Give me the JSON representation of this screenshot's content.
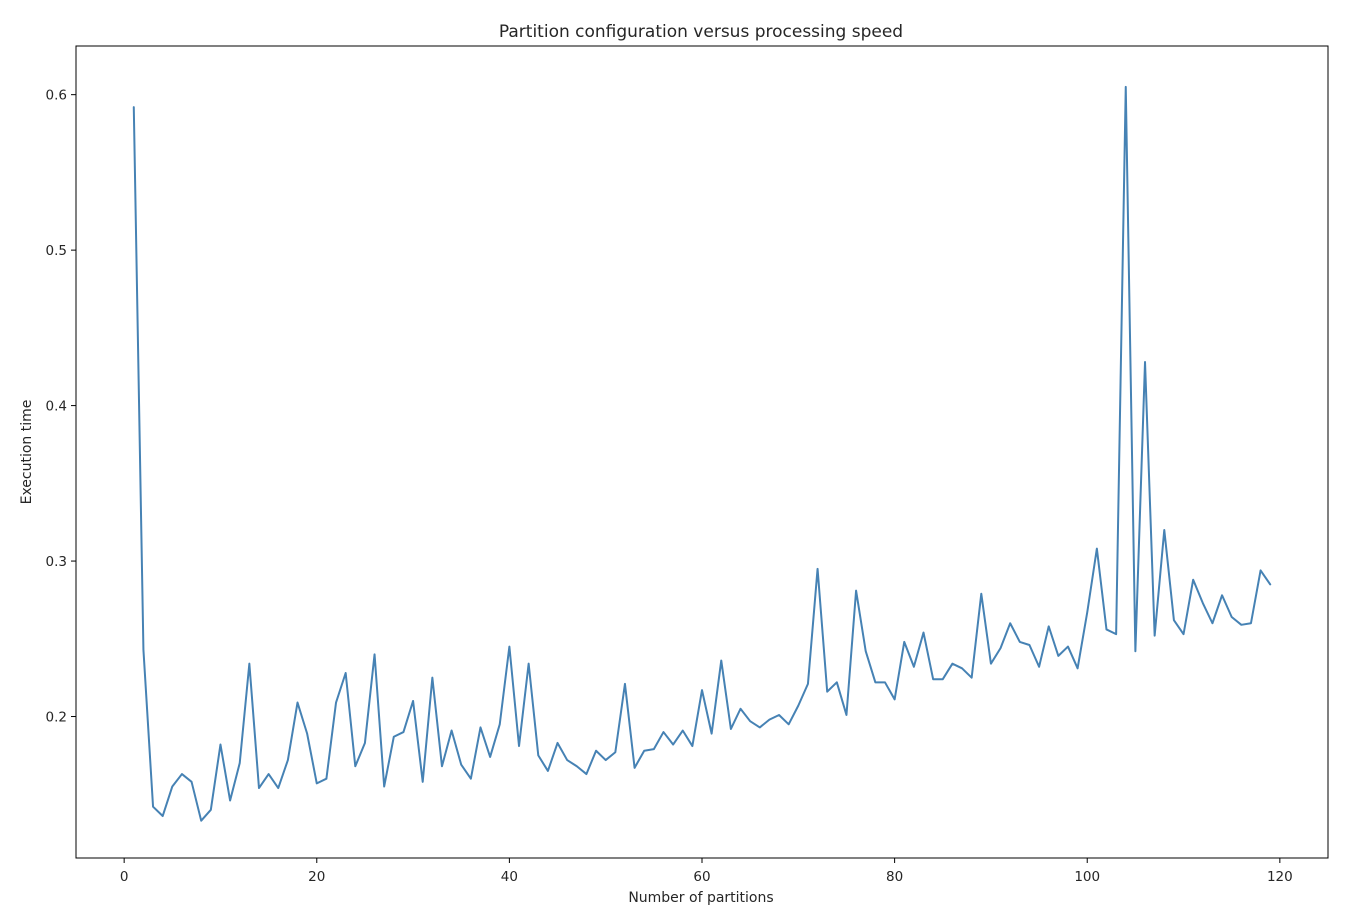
{
  "chart_data": {
    "type": "line",
    "title": "Partition configuration versus processing speed",
    "xlabel": "Number of partitions",
    "ylabel": "Execution time",
    "xlim": [
      -5,
      125
    ],
    "ylim": [
      0.109,
      0.6313
    ],
    "xticks": [
      0,
      20,
      40,
      60,
      80,
      100,
      120
    ],
    "yticks": [
      0.2,
      0.3,
      0.4,
      0.5,
      0.6
    ],
    "xtick_labels": [
      "0",
      "20",
      "40",
      "60",
      "80",
      "100",
      "120"
    ],
    "ytick_labels": [
      "0.2",
      "0.3",
      "0.4",
      "0.5",
      "0.6"
    ],
    "grid": false,
    "legend": "none",
    "line_color": "#4682b4",
    "series": [
      {
        "x": [
          1,
          2,
          3,
          4,
          5,
          6,
          7,
          8,
          9,
          10,
          11,
          12,
          13,
          14,
          15,
          16,
          17,
          18,
          19,
          20,
          21,
          22,
          23,
          24,
          25,
          26,
          27,
          28,
          29,
          30,
          31,
          32,
          33,
          34,
          35,
          36,
          37,
          38,
          39,
          40,
          41,
          42,
          43,
          44,
          45,
          46,
          47,
          48,
          49,
          50,
          51,
          52,
          53,
          54,
          55,
          56,
          57,
          58,
          59,
          60,
          61,
          62,
          63,
          64,
          65,
          66,
          67,
          68,
          69,
          70,
          71,
          72,
          73,
          74,
          75,
          76,
          77,
          78,
          79,
          80,
          81,
          82,
          83,
          84,
          85,
          86,
          87,
          88,
          89,
          90,
          91,
          92,
          93,
          94,
          95,
          96,
          97,
          98,
          99,
          100,
          101,
          102,
          103,
          104,
          105,
          106,
          107,
          108,
          109,
          110,
          111,
          112,
          113,
          114,
          115,
          116,
          117,
          118,
          119
        ],
        "values": [
          0.592,
          0.243,
          0.142,
          0.136,
          0.155,
          0.163,
          0.158,
          0.133,
          0.14,
          0.182,
          0.146,
          0.17,
          0.234,
          0.154,
          0.163,
          0.154,
          0.172,
          0.209,
          0.189,
          0.157,
          0.16,
          0.209,
          0.228,
          0.168,
          0.183,
          0.24,
          0.155,
          0.187,
          0.19,
          0.21,
          0.158,
          0.225,
          0.168,
          0.191,
          0.169,
          0.16,
          0.193,
          0.174,
          0.195,
          0.245,
          0.181,
          0.234,
          0.175,
          0.165,
          0.183,
          0.172,
          0.168,
          0.163,
          0.178,
          0.172,
          0.177,
          0.221,
          0.167,
          0.178,
          0.179,
          0.19,
          0.182,
          0.191,
          0.181,
          0.217,
          0.189,
          0.236,
          0.192,
          0.205,
          0.197,
          0.193,
          0.198,
          0.201,
          0.195,
          0.207,
          0.221,
          0.295,
          0.216,
          0.222,
          0.201,
          0.281,
          0.242,
          0.222,
          0.222,
          0.211,
          0.248,
          0.232,
          0.254,
          0.224,
          0.224,
          0.234,
          0.231,
          0.225,
          0.279,
          0.234,
          0.244,
          0.26,
          0.248,
          0.246,
          0.232,
          0.258,
          0.239,
          0.245,
          0.231,
          0.267,
          0.308,
          0.256,
          0.253,
          0.605,
          0.242,
          0.428,
          0.252,
          0.32,
          0.262,
          0.253,
          0.288,
          0.273,
          0.26,
          0.278,
          0.264,
          0.259,
          0.26,
          0.294,
          0.285
        ]
      }
    ]
  }
}
